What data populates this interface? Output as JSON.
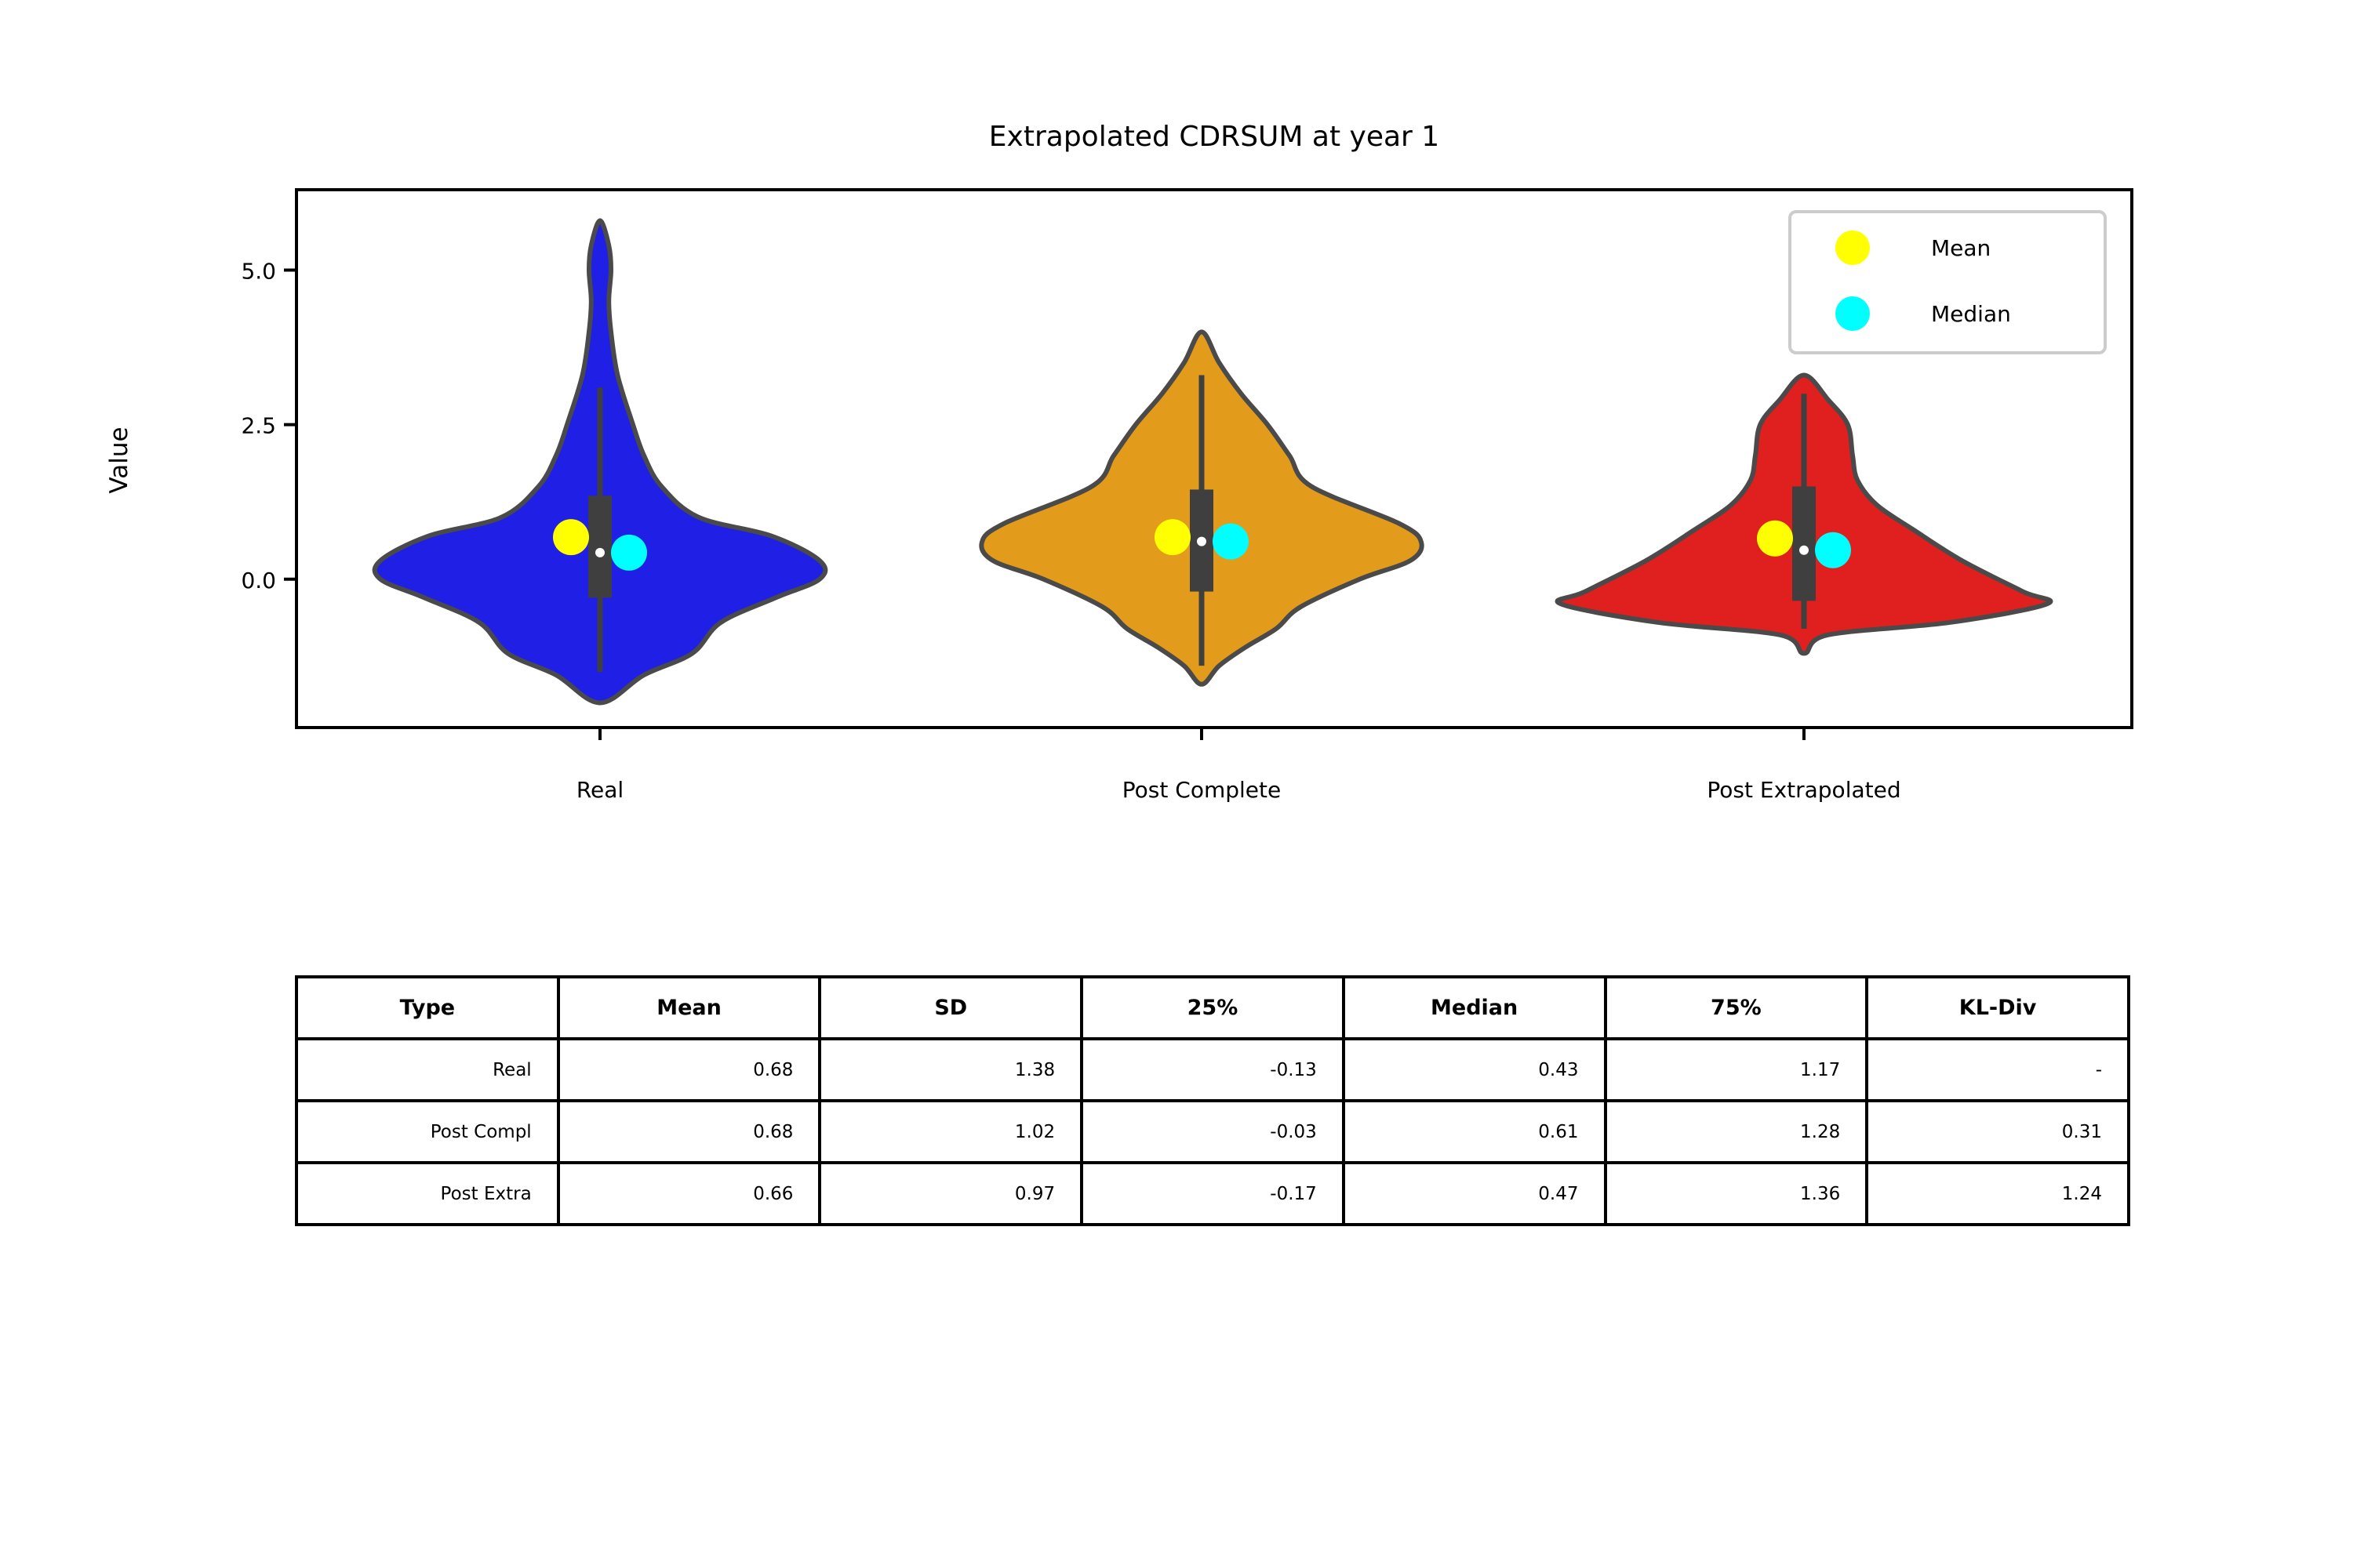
{
  "chart_data": {
    "type": "violin",
    "title": "Extrapolated CDRSUM at year 1",
    "xlabel": "",
    "ylabel": "Value",
    "ylim": [
      -2.4,
      6.3
    ],
    "yticks": [
      0.0,
      2.5,
      5.0
    ],
    "ytick_labels": [
      "0.0",
      "2.5",
      "5.0"
    ],
    "categories": [
      "Real",
      "Post Complete",
      "Post Extrapolated"
    ],
    "colors": [
      "#1f1fe6",
      "#e39b1c",
      "#e01f1f"
    ],
    "violins": [
      {
        "name": "Real",
        "y": [
          -2.0,
          -1.55,
          -1.2,
          -0.7,
          -0.3,
          0.0,
          0.3,
          0.7,
          1.0,
          1.5,
          2.0,
          2.5,
          3.3,
          4.0,
          4.5,
          5.0,
          5.4,
          5.8
        ],
        "density": [
          0.0,
          0.2,
          0.42,
          0.55,
          0.8,
          1.0,
          1.0,
          0.78,
          0.45,
          0.28,
          0.2,
          0.15,
          0.08,
          0.05,
          0.04,
          0.05,
          0.04,
          0.0
        ],
        "whisker": [
          -1.5,
          3.1
        ],
        "box": [
          -0.3,
          1.35
        ],
        "median_dot": 0.43
      },
      {
        "name": "Post Complete",
        "y": [
          -1.7,
          -1.4,
          -1.1,
          -0.8,
          -0.45,
          0.0,
          0.3,
          0.6,
          0.9,
          1.5,
          2.0,
          2.5,
          3.0,
          3.5,
          4.0
        ],
        "density": [
          0.0,
          0.08,
          0.2,
          0.34,
          0.45,
          0.72,
          0.95,
          1.0,
          0.9,
          0.5,
          0.4,
          0.3,
          0.18,
          0.08,
          0.0
        ],
        "whisker": [
          -1.4,
          3.3
        ],
        "box": [
          -0.2,
          1.45
        ],
        "median_dot": 0.61
      },
      {
        "name": "Post Extrapolated",
        "y": [
          -1.2,
          -0.9,
          -0.7,
          -0.4,
          -0.2,
          0.3,
          0.8,
          1.2,
          1.6,
          2.0,
          2.5,
          2.9,
          3.3
        ],
        "density": [
          0.0,
          0.1,
          0.6,
          1.0,
          0.9,
          0.65,
          0.45,
          0.3,
          0.22,
          0.2,
          0.18,
          0.1,
          0.0
        ],
        "whisker": [
          -0.8,
          3.0
        ],
        "box": [
          -0.35,
          1.5
        ],
        "median_dot": 0.47
      }
    ],
    "means": [
      0.68,
      0.68,
      0.66
    ],
    "medians": [
      0.43,
      0.61,
      0.47
    ],
    "legend": {
      "placement": "top-right",
      "entries": [
        {
          "label": "Mean",
          "color": "#ffff00"
        },
        {
          "label": "Median",
          "color": "#00ffff"
        }
      ]
    }
  },
  "table": {
    "columns": [
      "Type",
      "Mean",
      "SD",
      "25%",
      "Median",
      "75%",
      "KL-Div"
    ],
    "rows": [
      [
        "Real",
        "0.68",
        "1.38",
        "-0.13",
        "0.43",
        "1.17",
        "-"
      ],
      [
        "Post Compl",
        "0.68",
        "1.02",
        "-0.03",
        "0.61",
        "1.28",
        "0.31"
      ],
      [
        "Post Extra",
        "0.66",
        "0.97",
        "-0.17",
        "0.47",
        "1.36",
        "1.24"
      ]
    ]
  }
}
